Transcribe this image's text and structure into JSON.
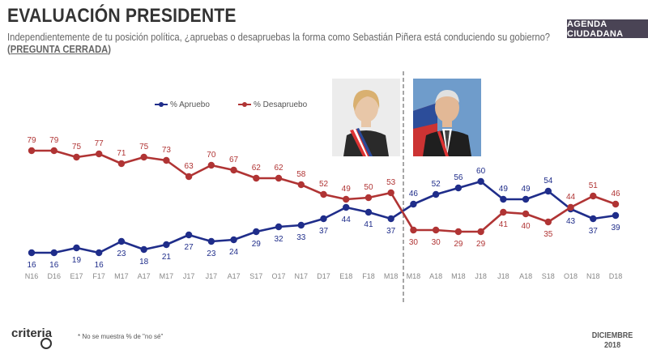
{
  "header": {
    "title": "EVALUACIÓN PRESIDENTE",
    "subtitle": "Independientemente de tu posición política, ¿apruebas o desapruebas la forma como Sebastián Piñera está conduciendo su gobierno?",
    "subtitle_open": "(",
    "subtitle_bold": "PREGUNTA CERRADA",
    "subtitle_close": ")",
    "brand_box": "AGENDA CIUDADANA"
  },
  "footer": {
    "logo_text": "criteria",
    "footnote": "* No se muestra % de \"no sé\"",
    "date_line1": "DICIEMBRE",
    "date_line2": "2018"
  },
  "colors": {
    "apruebo": "#1f2d8a",
    "desapruebo": "#b03434",
    "axis_text": "#888888",
    "divider": "#888888"
  },
  "chart_data": {
    "type": "line",
    "categories": [
      "N16",
      "D16",
      "E17",
      "F17",
      "M17",
      "A17",
      "M17",
      "J17",
      "J17",
      "A17",
      "S17",
      "O17",
      "N17",
      "D17",
      "E18",
      "F18",
      "M18",
      "M18",
      "A18",
      "M18",
      "J18",
      "J18",
      "A18",
      "S18",
      "O18",
      "N18",
      "D18"
    ],
    "series": [
      {
        "name": "% Apruebo",
        "color": "#1f2d8a",
        "values": [
          16,
          16,
          19,
          16,
          23,
          18,
          21,
          27,
          23,
          24,
          29,
          32,
          33,
          37,
          44,
          41,
          37,
          46,
          52,
          56,
          60,
          49,
          49,
          54,
          43,
          37,
          39
        ]
      },
      {
        "name": "% Desapruebo",
        "color": "#b03434",
        "values": [
          79,
          79,
          75,
          77,
          71,
          75,
          73,
          63,
          70,
          67,
          62,
          62,
          58,
          52,
          49,
          50,
          53,
          30,
          30,
          29,
          29,
          41,
          40,
          35,
          44,
          51,
          46
        ]
      }
    ],
    "legend_position": "top-left",
    "grid": false
  }
}
